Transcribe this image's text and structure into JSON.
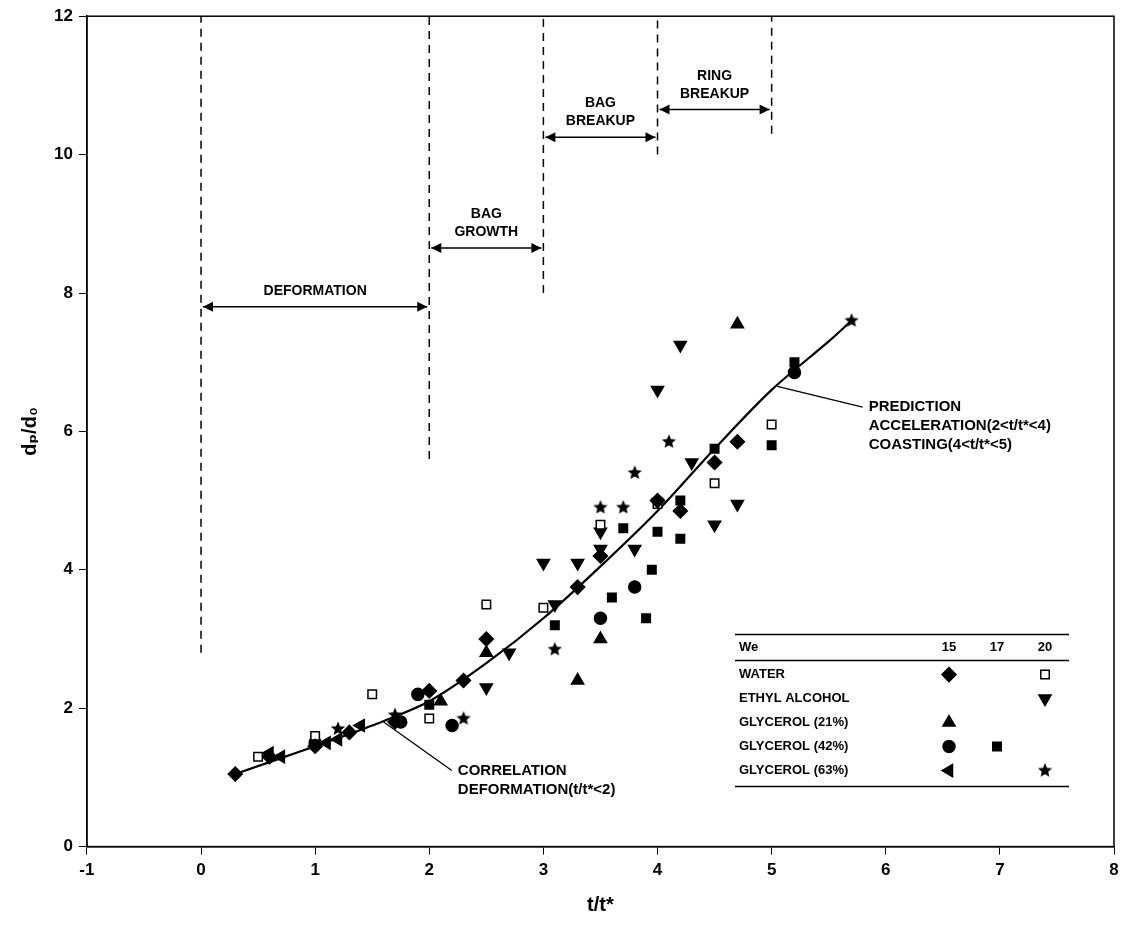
{
  "chart_data": {
    "type": "scatter",
    "x_label": "t/t*",
    "y_label": "dₚ/d₀",
    "xlim": [
      -1,
      8
    ],
    "xticks": [
      -1,
      0,
      1,
      2,
      3,
      4,
      5,
      6,
      7,
      8
    ],
    "ylim": [
      0,
      12
    ],
    "yticks": [
      0,
      2,
      4,
      6,
      8,
      10,
      12
    ],
    "grid": false,
    "legend": "lower right",
    "legend_header": "We",
    "we_columns": [
      15,
      17,
      20
    ],
    "series": [
      {
        "name": "WATER",
        "We": 15,
        "marker": "diamond",
        "color": "#000000",
        "x": [
          0.3,
          0.6,
          1.0,
          1.3,
          1.7,
          2.0,
          2.3,
          2.5,
          3.3,
          3.5,
          4.0,
          4.2,
          4.5,
          4.7
        ],
        "values": [
          1.05,
          1.3,
          1.45,
          1.65,
          1.8,
          2.25,
          2.4,
          3.0,
          3.75,
          4.2,
          5.0,
          4.85,
          5.55,
          5.85
        ]
      },
      {
        "name": "WATER",
        "We": 20,
        "marker": "square_open",
        "color": "#000000",
        "x": [
          0.5,
          1.0,
          1.5,
          2.0,
          2.5,
          3.0,
          3.5,
          4.0,
          4.5,
          5.0
        ],
        "values": [
          1.3,
          1.6,
          2.2,
          1.85,
          3.5,
          3.45,
          4.65,
          4.95,
          5.25,
          6.1
        ]
      },
      {
        "name": "ETHYL ALCOHOL",
        "We": 20,
        "marker": "triangle_down",
        "color": "#000000",
        "x": [
          2.5,
          2.7,
          3.0,
          3.1,
          3.3,
          3.5,
          3.5,
          3.8,
          4.0,
          4.2,
          4.3,
          4.5,
          4.7
        ],
        "values": [
          2.3,
          2.8,
          4.1,
          3.5,
          4.1,
          4.55,
          4.3,
          4.3,
          6.6,
          7.25,
          5.55,
          4.65,
          4.95
        ]
      },
      {
        "name": "GLYCEROL (21%)",
        "We": 15,
        "marker": "triangle_up",
        "color": "#000000",
        "x": [
          2.1,
          2.5,
          3.3,
          3.5,
          4.7
        ],
        "values": [
          2.1,
          2.8,
          2.4,
          3.0,
          7.55
        ]
      },
      {
        "name": "GLYCEROL (42%)",
        "We": 15,
        "marker": "circle",
        "color": "#000000",
        "x": [
          1.0,
          1.75,
          1.9,
          2.2,
          3.5,
          3.8,
          5.2
        ],
        "values": [
          1.5,
          1.8,
          2.2,
          1.75,
          3.3,
          3.75,
          6.85
        ]
      },
      {
        "name": "GLYCEROL (42%)",
        "We": 17,
        "marker": "square",
        "color": "#000000",
        "x": [
          2.0,
          3.1,
          3.6,
          3.7,
          3.9,
          3.95,
          4.0,
          4.2,
          4.2,
          4.5,
          5.0,
          5.2
        ],
        "values": [
          2.05,
          3.2,
          3.6,
          4.6,
          3.3,
          4.0,
          4.55,
          4.45,
          5.0,
          5.75,
          5.8,
          7.0
        ]
      },
      {
        "name": "GLYCEROL (63%)",
        "We": 15,
        "marker": "triangle_left",
        "color": "#000000",
        "x": [
          0.6,
          0.7,
          1.1,
          1.2,
          1.4
        ],
        "values": [
          1.35,
          1.3,
          1.5,
          1.55,
          1.75
        ]
      },
      {
        "name": "GLYCEROL (63%)",
        "We": 20,
        "marker": "star",
        "color": "#000000",
        "x": [
          1.2,
          1.7,
          2.3,
          3.1,
          3.5,
          3.7,
          3.8,
          4.0,
          4.1,
          5.7
        ],
        "values": [
          1.7,
          1.9,
          1.85,
          2.85,
          4.9,
          4.9,
          5.4,
          5.0,
          5.85,
          7.6
        ]
      }
    ],
    "curve": {
      "color": "#000000",
      "x": [
        0.3,
        1.0,
        1.5,
        2.0,
        2.5,
        3.0,
        3.5,
        4.0,
        4.5,
        5.0,
        5.5,
        5.7
      ],
      "values": [
        1.05,
        1.45,
        1.75,
        2.1,
        2.65,
        3.3,
        4.05,
        4.85,
        5.75,
        6.6,
        7.3,
        7.6
      ]
    },
    "dashed_lines": [
      {
        "x": 0,
        "y": [
          2.8,
          12
        ]
      },
      {
        "x": 2,
        "y": [
          5.6,
          12
        ]
      },
      {
        "x": 3,
        "y": [
          8.0,
          12
        ]
      },
      {
        "x": 4,
        "y": [
          10.0,
          12
        ]
      },
      {
        "x": 5,
        "y": [
          10.3,
          12
        ]
      }
    ],
    "phases": [
      {
        "label": "DEFORMATION",
        "x": [
          0,
          2
        ],
        "y": 7.8
      },
      {
        "label": "BAG GROWTH",
        "x": [
          2,
          3
        ],
        "y": 8.65
      },
      {
        "label": "BAG BREAKUP",
        "x": [
          3,
          4
        ],
        "y": 10.25
      },
      {
        "label": "RING BREAKUP",
        "x": [
          4,
          5
        ],
        "y": 10.65
      }
    ],
    "annotations": [
      {
        "lines": [
          "CORRELATION",
          "DEFORMATION(t/t*<2)"
        ],
        "x": 2.25,
        "y": 1.1,
        "target": [
          1.6,
          1.8
        ]
      },
      {
        "lines": [
          "PREDICTION",
          "ACCELERATION(2<t/t*<4)",
          "COASTING(4<t/t*<5)"
        ],
        "x": 5.85,
        "y": 6.35,
        "target": [
          5.05,
          6.65
        ]
      }
    ]
  }
}
